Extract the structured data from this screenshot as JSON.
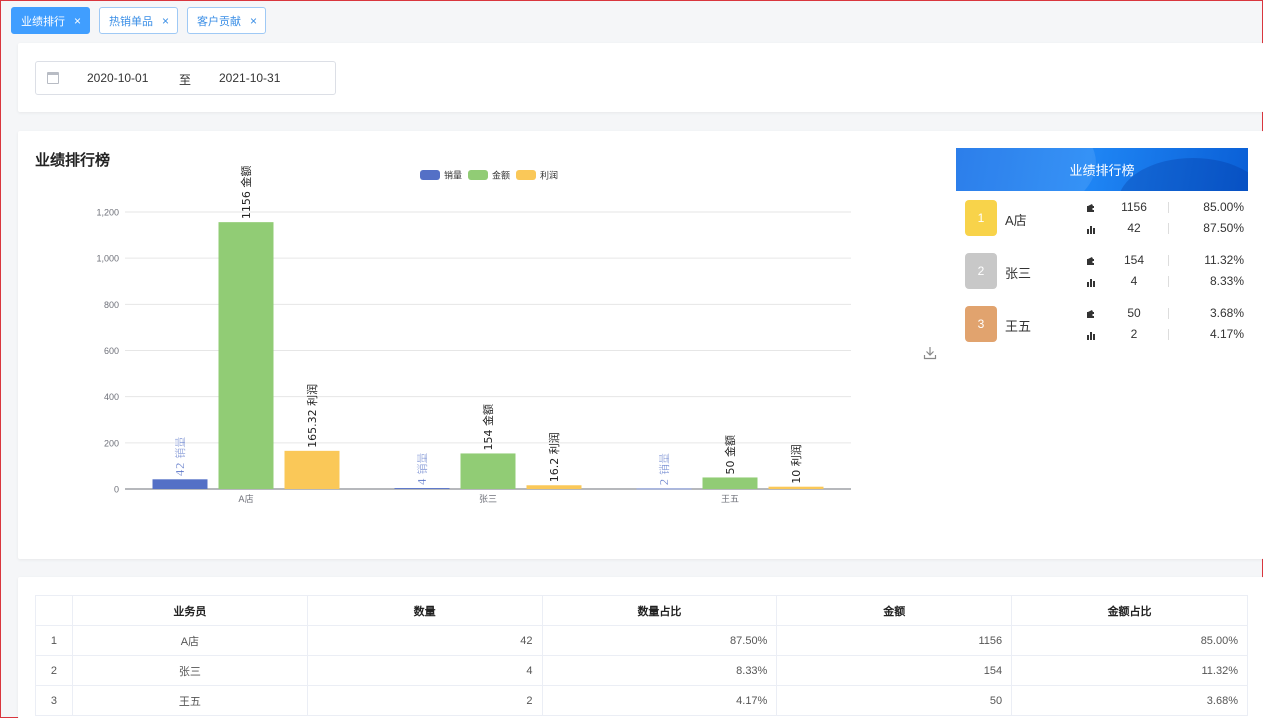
{
  "tabs": [
    {
      "label": "业绩排行",
      "active": true
    },
    {
      "label": "热销单品",
      "active": false
    },
    {
      "label": "客户贡献",
      "active": false
    }
  ],
  "filter": {
    "start_date": "2020-10-01",
    "separator": "至",
    "end_date": "2021-10-31"
  },
  "chart_title": "业绩排行榜",
  "chart_data": {
    "type": "bar",
    "categories": [
      "A店",
      "张三",
      "王五"
    ],
    "series": [
      {
        "name": "销量",
        "values": [
          42,
          4,
          2
        ],
        "color": "#5470c6"
      },
      {
        "name": "金额",
        "values": [
          1156,
          154,
          50
        ],
        "color": "#91cc75"
      },
      {
        "name": "利润",
        "values": [
          165.32,
          16.2,
          10
        ],
        "color": "#fac858"
      }
    ],
    "ylim": [
      0,
      1200
    ],
    "yticks": [
      "0",
      "200",
      "400",
      "600",
      "800",
      "1,000",
      "1,200"
    ],
    "grid": true,
    "legend": "top-center",
    "data_labels": "rotated value + series name"
  },
  "ranking": {
    "title": "业绩排行榜",
    "items": [
      {
        "rank": "1",
        "name": "A店",
        "amount": "1156",
        "amount_pct": "85.00%",
        "qty": "42",
        "qty_pct": "87.50%",
        "color": "#f8d34a"
      },
      {
        "rank": "2",
        "name": "张三",
        "amount": "154",
        "amount_pct": "11.32%",
        "qty": "4",
        "qty_pct": "8.33%",
        "color": "#c8c8c8"
      },
      {
        "rank": "3",
        "name": "王五",
        "amount": "50",
        "amount_pct": "3.68%",
        "qty": "2",
        "qty_pct": "4.17%",
        "color": "#e1a36e"
      }
    ]
  },
  "table": {
    "headers": [
      "",
      "业务员",
      "数量",
      "数量占比",
      "金额",
      "金额占比"
    ],
    "rows": [
      [
        "1",
        "A店",
        "42",
        "87.50%",
        "1156",
        "85.00%"
      ],
      [
        "2",
        "张三",
        "4",
        "8.33%",
        "154",
        "11.32%"
      ],
      [
        "3",
        "王五",
        "2",
        "4.17%",
        "50",
        "3.68%"
      ]
    ]
  },
  "icons": {
    "download": "download-icon",
    "calendar": "calendar-icon",
    "wallet": "wallet-icon",
    "bars": "bar-chart-icon",
    "close": "close-icon"
  }
}
